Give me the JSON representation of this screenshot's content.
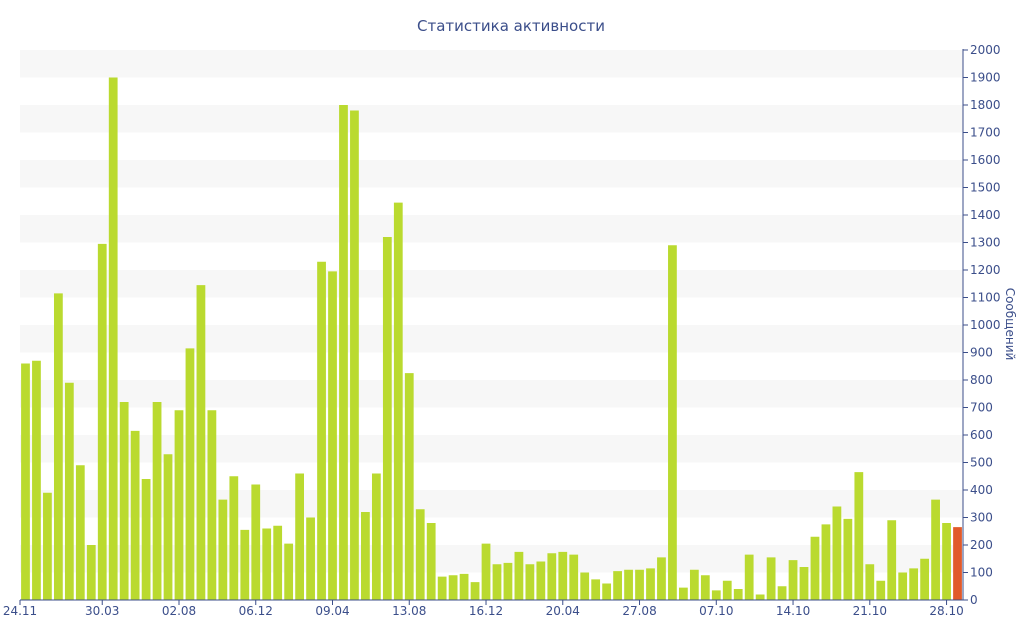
{
  "chart_data": {
    "type": "bar",
    "title": "Статистика активности",
    "ylabel": "Сообщений",
    "xlabel": "",
    "ylim": [
      0,
      2000
    ],
    "y_ticks": [
      0,
      100,
      200,
      300,
      400,
      500,
      600,
      700,
      800,
      900,
      1000,
      1100,
      1200,
      1300,
      1400,
      1500,
      1600,
      1700,
      1800,
      1900,
      2000
    ],
    "x_tick_labels": [
      {
        "index": 0,
        "label": "24.11"
      },
      {
        "index": 7,
        "label": "30.03"
      },
      {
        "index": 14,
        "label": "02.08"
      },
      {
        "index": 21,
        "label": "06.12"
      },
      {
        "index": 28,
        "label": "09.04"
      },
      {
        "index": 35,
        "label": "13.08"
      },
      {
        "index": 42,
        "label": "16.12"
      },
      {
        "index": 49,
        "label": "20.04"
      },
      {
        "index": 56,
        "label": "27.08"
      },
      {
        "index": 63,
        "label": "07.10"
      },
      {
        "index": 70,
        "label": "14.10"
      },
      {
        "index": 77,
        "label": "21.10"
      },
      {
        "index": 84,
        "label": "28.10"
      }
    ],
    "values": [
      860,
      870,
      390,
      1115,
      790,
      490,
      200,
      1295,
      1900,
      720,
      615,
      440,
      720,
      530,
      690,
      915,
      1145,
      690,
      365,
      450,
      255,
      420,
      260,
      270,
      205,
      460,
      300,
      1230,
      1195,
      1800,
      1780,
      320,
      460,
      1320,
      1445,
      825,
      330,
      280,
      85,
      90,
      95,
      65,
      205,
      130,
      135,
      175,
      130,
      140,
      170,
      175,
      165,
      100,
      75,
      60,
      105,
      110,
      110,
      115,
      155,
      1290,
      45,
      110,
      90,
      35,
      70,
      40,
      165,
      20,
      155,
      50,
      145,
      120,
      230,
      275,
      340,
      295,
      465,
      130,
      70,
      290,
      100,
      115,
      150,
      365,
      280,
      265
    ],
    "colors": {
      "bar": "#bada2f",
      "last_bar": "#e15a2b",
      "axis": "#3b4e8a",
      "text": "#3b4e8a",
      "band": "#f7f7f7"
    },
    "grid": "alternating horizontal bands",
    "axis_position": "right",
    "legend": "none"
  }
}
